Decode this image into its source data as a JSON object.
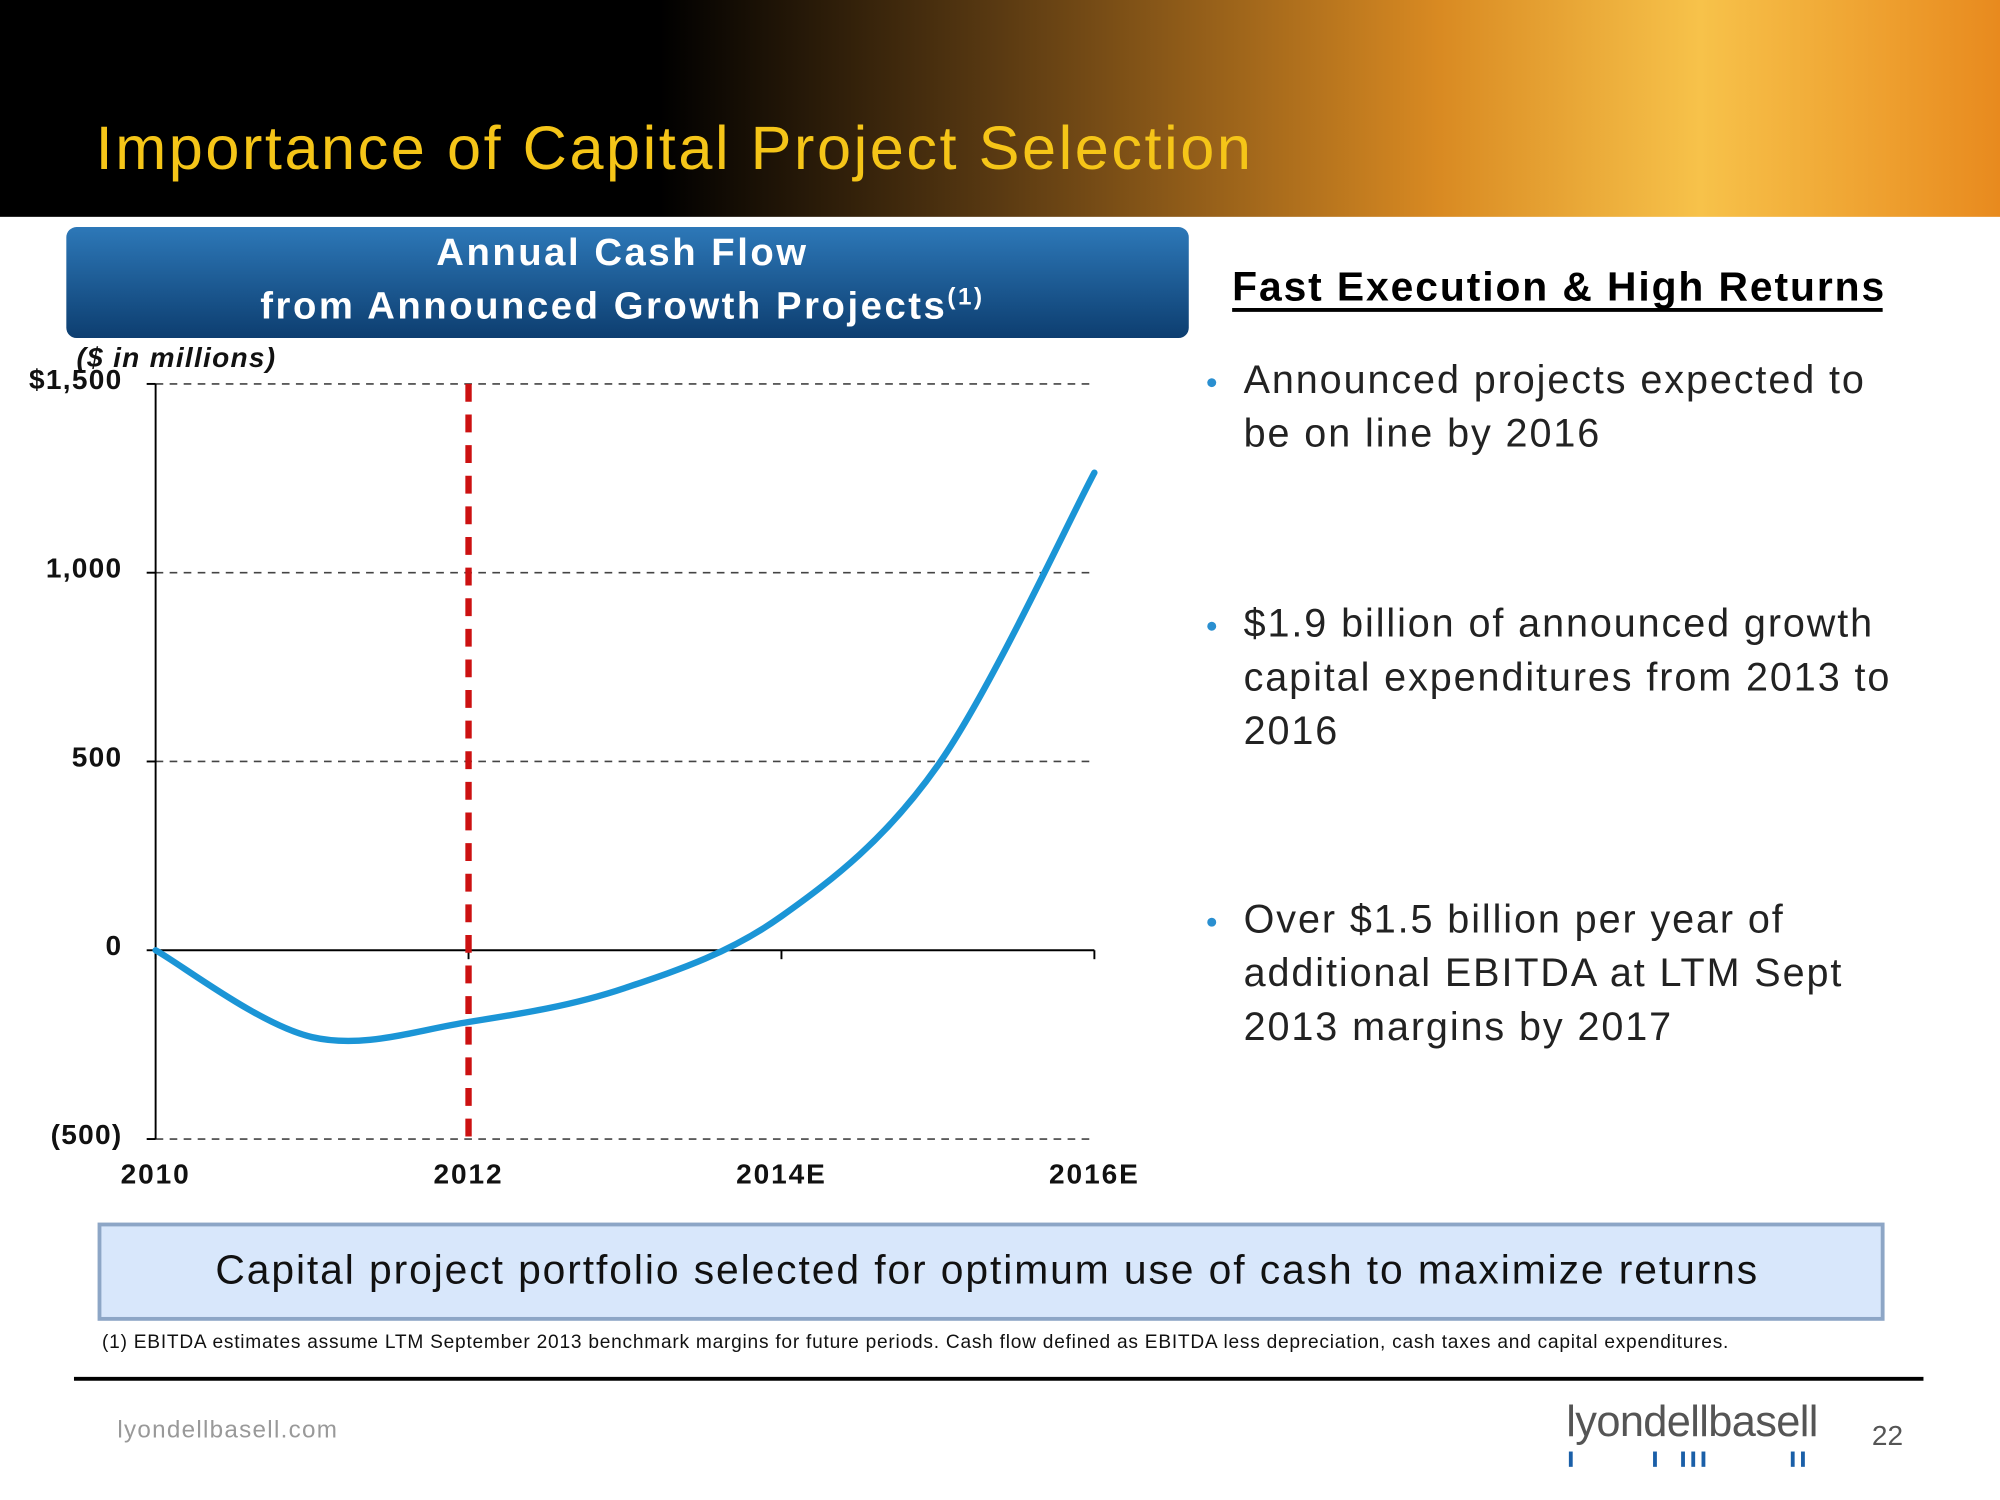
{
  "header": {
    "title": "Importance of Capital Project Selection"
  },
  "chart_data": {
    "type": "line",
    "title_lines": [
      "Annual Cash Flow",
      "from Announced Growth Projects"
    ],
    "title_note": "(1)",
    "y_label": "($ in millions)",
    "x": [
      2010,
      2011,
      2012,
      2013,
      2014,
      2015,
      2016
    ],
    "values": [
      0,
      -230,
      -190,
      -100,
      90,
      490,
      1265
    ],
    "color": "#1b95d6",
    "xlim": [
      2010,
      2016
    ],
    "xticks": [
      2010,
      2012,
      {
        "value": 2014,
        "label": "2014E"
      },
      {
        "value": 2016,
        "label": "2016E"
      }
    ],
    "ylim": [
      -500,
      1500
    ],
    "yticks": [
      {
        "value": -500,
        "label": "(500)"
      },
      0,
      500,
      {
        "value": 1000,
        "label": "1,000"
      },
      {
        "value": 1500,
        "label": "$1,500"
      }
    ],
    "grid": true,
    "reference_line": {
      "x": 2012,
      "color": "#cc1111"
    }
  },
  "highlights": {
    "heading": "Fast Execution & High Returns",
    "bullets": [
      [
        "Announced projects expected to",
        "be on line by 2016"
      ],
      [
        "$1.9 billion of announced growth",
        "capital expenditures from 2013 to",
        "2016"
      ],
      [
        "Over $1.5 billion per year of",
        "additional EBITDA at LTM Sept",
        "2013 margins by 2017"
      ]
    ]
  },
  "banner": "Capital project portfolio selected for optimum use of cash to maximize returns",
  "footnote": "(1) EBITDA estimates assume LTM  September 2013  benchmark margins for future periods. Cash flow defined as EBITDA less depreciation, cash taxes and capital expenditures.",
  "footer": {
    "site": "lyondellbasell.com",
    "logo": "lyondellbasell",
    "page": "22"
  }
}
